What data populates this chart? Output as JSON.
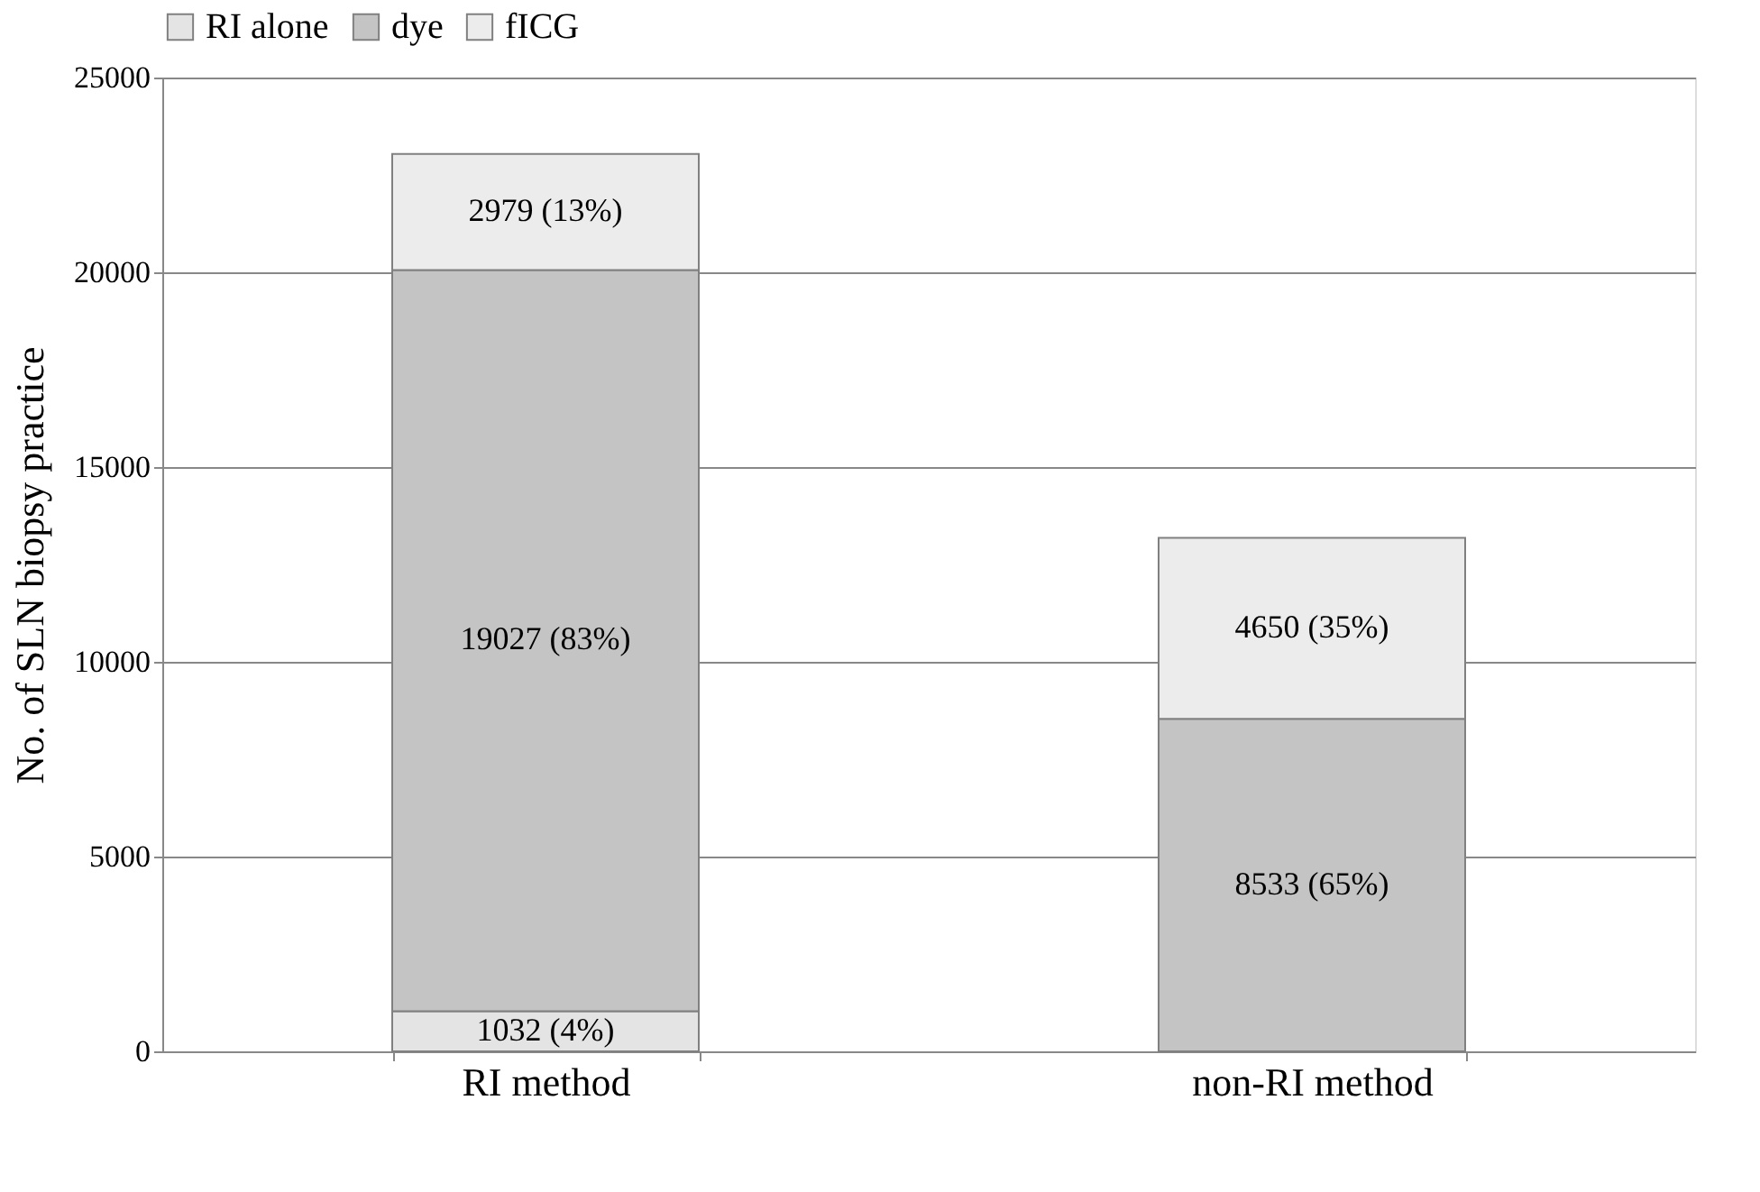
{
  "chart_data": {
    "type": "bar",
    "stacked": true,
    "ylabel": "No. of SLN biopsy practice",
    "categories": [
      "RI method",
      "non-RI method"
    ],
    "series": [
      {
        "name": "RI alone",
        "color": "#e4e4e4",
        "values": [
          1032,
          null
        ],
        "value_labels": [
          "1032  (4%)",
          null
        ]
      },
      {
        "name": "dye",
        "color": "#c4c4c4",
        "values": [
          19027,
          8533
        ],
        "value_labels": [
          "19027  (83%)",
          "8533  (65%)"
        ]
      },
      {
        "name": "fICG",
        "color": "#ececec",
        "values": [
          2979,
          4650
        ],
        "value_labels": [
          "2979  (13%)",
          "4650  (35%)"
        ]
      }
    ],
    "ylim": [
      0,
      25000
    ],
    "yticks": [
      0,
      5000,
      10000,
      15000,
      20000,
      25000
    ],
    "grid": "y",
    "legend": "top"
  }
}
